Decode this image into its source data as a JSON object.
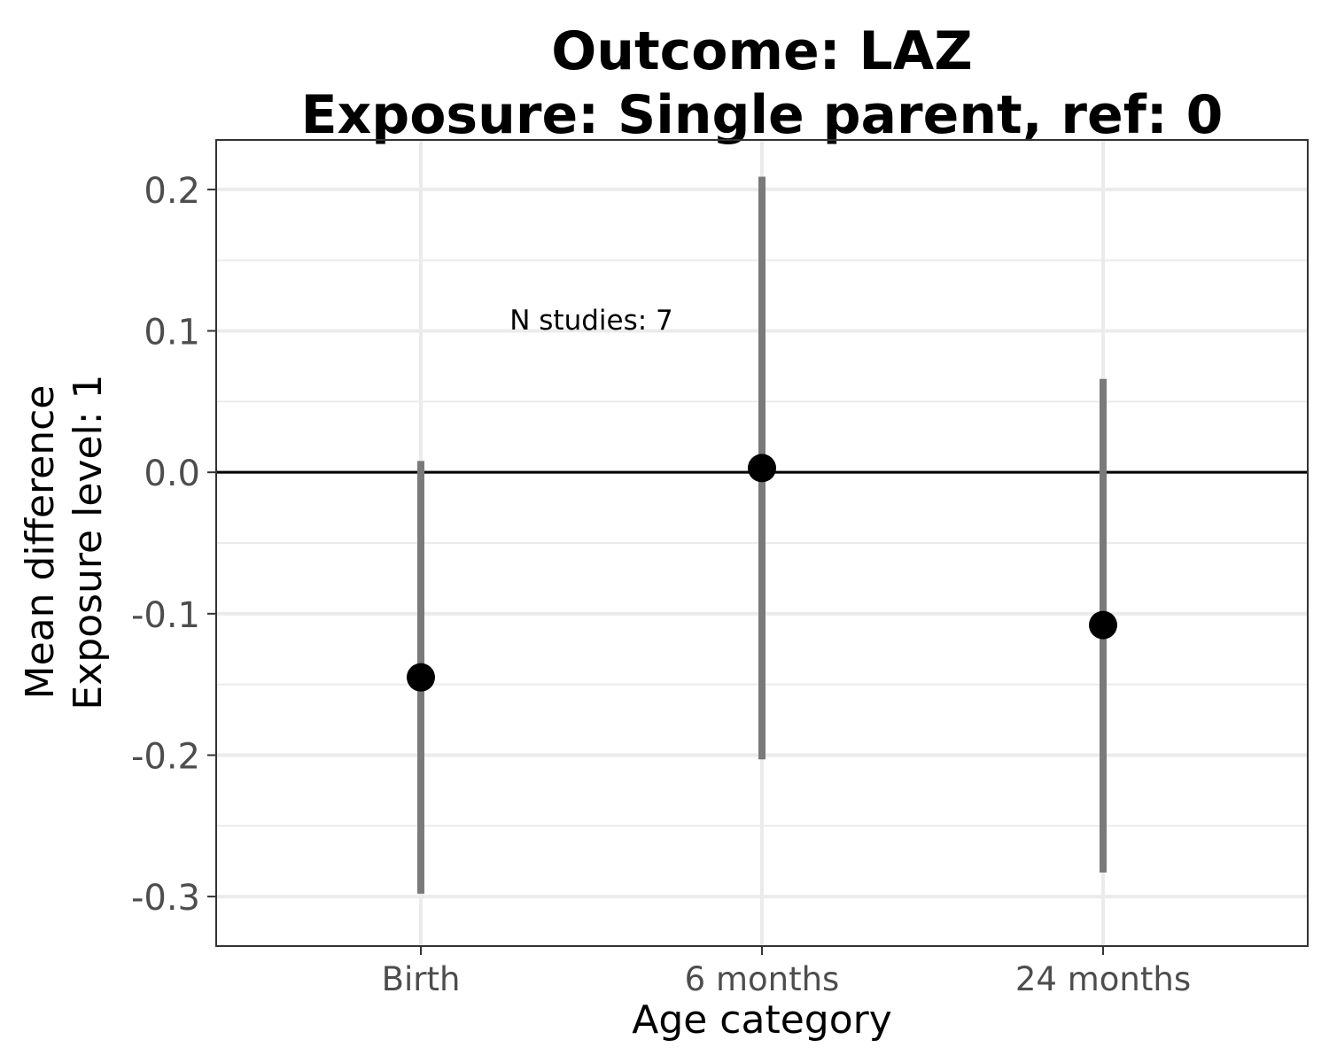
{
  "chart_data": {
    "type": "scatter",
    "title_line1": "Outcome: LAZ",
    "title_line2": "Exposure: Single parent, ref: 0",
    "xlabel": "Age category",
    "ylabel_line1": "Mean difference",
    "ylabel_line2": "Exposure level: 1",
    "categories": [
      "Birth",
      "6 months",
      "24 months"
    ],
    "estimates": [
      -0.145,
      0.003,
      -0.108
    ],
    "ci_lower": [
      -0.298,
      -0.203,
      -0.283
    ],
    "ci_upper": [
      0.008,
      0.209,
      0.066
    ],
    "y_ticks": [
      -0.3,
      -0.2,
      -0.1,
      0.0,
      0.1,
      0.2
    ],
    "y_tick_labels": [
      "-0.3",
      "-0.2",
      "-0.1",
      "0.0",
      "0.1",
      "0.2"
    ],
    "ylim": [
      -0.335,
      0.235
    ],
    "reference_line": 0,
    "annotation": "N studies: 7",
    "annotation_x": 1.5,
    "annotation_y": 0.108,
    "grid": true,
    "colors": {
      "point": "#000000",
      "ci_bar": "#7a7a7a",
      "grid": "#ebebeb",
      "reference_line": "#000000",
      "panel_border": "#333333"
    }
  }
}
